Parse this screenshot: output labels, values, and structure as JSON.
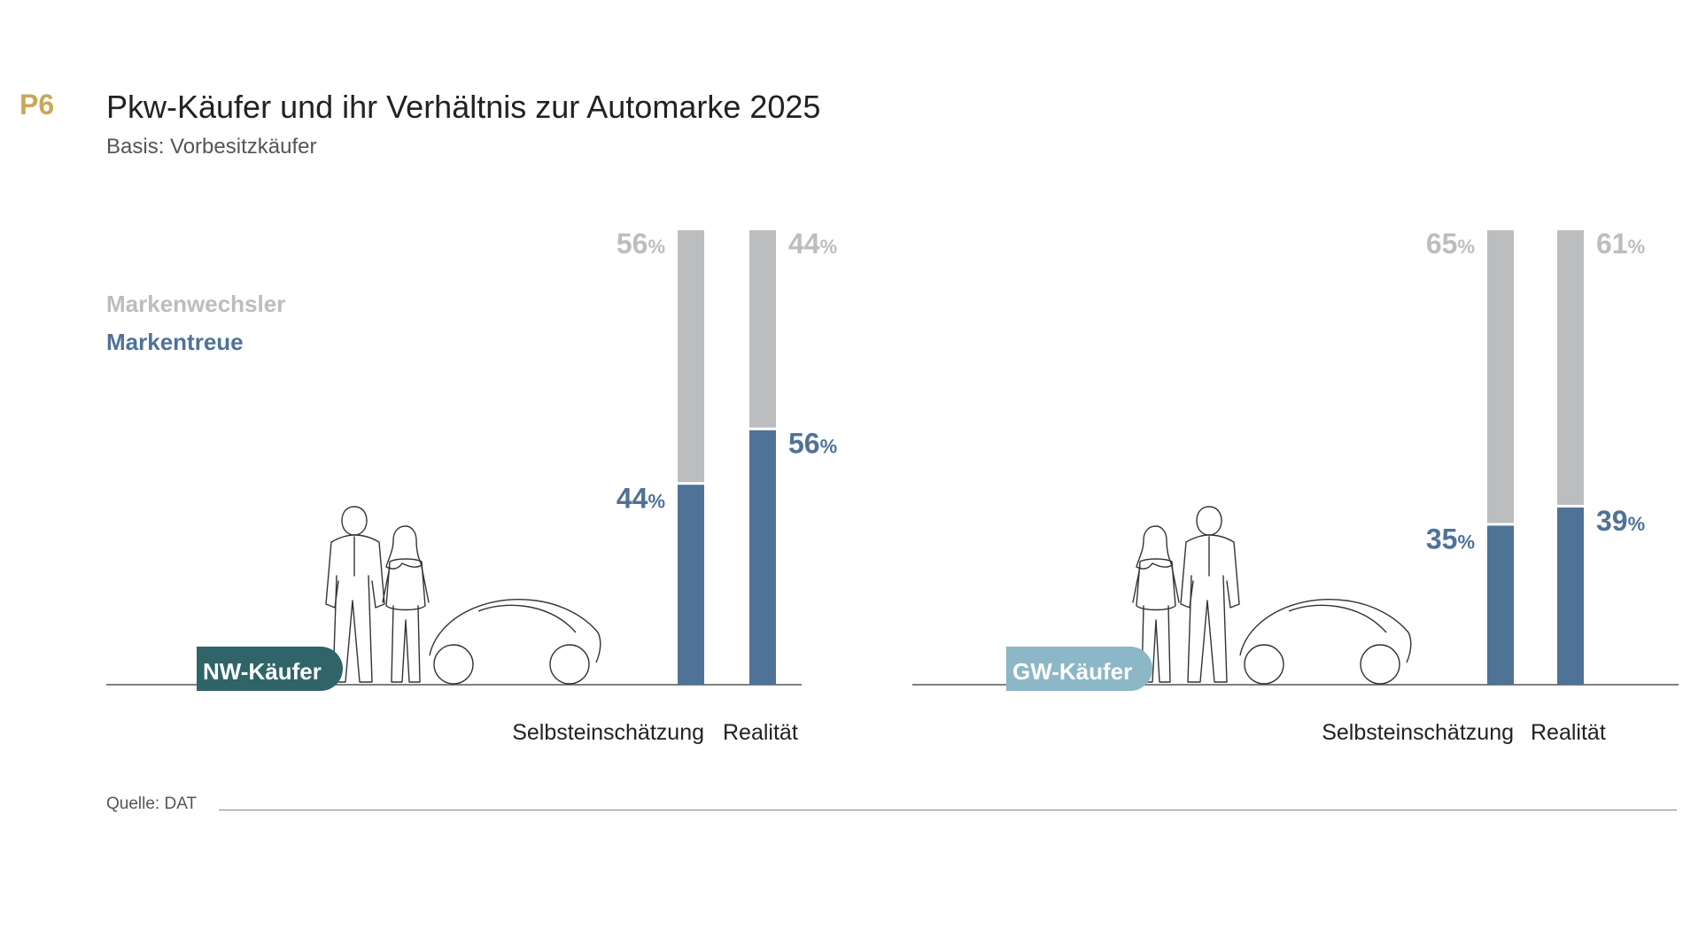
{
  "header": {
    "code": "P6",
    "title": "Pkw-Käufer und ihr Verhältnis zur Automarke 2025",
    "subtitle": "Basis: Vorbesitzkäufer"
  },
  "legend": [
    {
      "name": "Markenwechsler",
      "color": "#bcbdbf"
    },
    {
      "name": "Markentreue",
      "color": "#4f7297"
    }
  ],
  "percent_sign": "%",
  "footer": {
    "source": "Quelle: DAT"
  },
  "chart_data": [
    {
      "type": "bar",
      "stacked": true,
      "group_label": "NW-Käufer",
      "group_color": "#2f6469",
      "categories": [
        "Selbsteinschätzung",
        "Realität"
      ],
      "series": [
        {
          "name": "Markentreue",
          "values": [
            44,
            56
          ]
        },
        {
          "name": "Markenwechsler",
          "values": [
            56,
            44
          ]
        }
      ],
      "ylim": [
        0,
        100
      ]
    },
    {
      "type": "bar",
      "stacked": true,
      "group_label": "GW-Käufer",
      "group_color": "#8bb7c6",
      "categories": [
        "Selbsteinschätzung",
        "Realität"
      ],
      "series": [
        {
          "name": "Markentreue",
          "values": [
            35,
            39
          ]
        },
        {
          "name": "Markenwechsler",
          "values": [
            65,
            61
          ]
        }
      ],
      "ylim": [
        0,
        100
      ]
    }
  ],
  "colors": {
    "loyal": "#4f7297",
    "switcher": "#bcbdbf",
    "axis": "#555555",
    "illustration": "#333333"
  },
  "illustration_icons": [
    "couple-icon",
    "car-icon"
  ]
}
